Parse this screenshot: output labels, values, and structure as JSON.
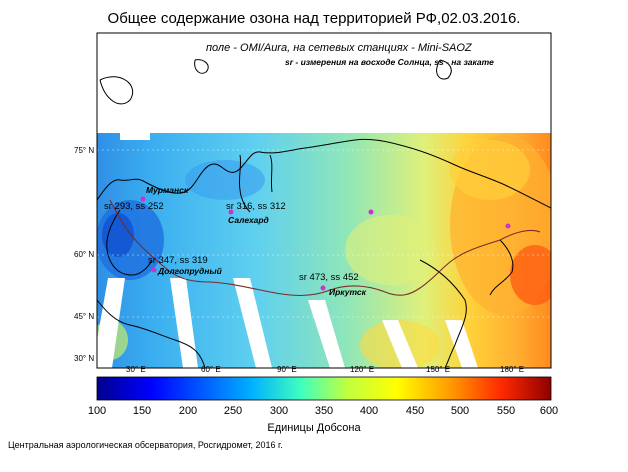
{
  "title": "Общее содержание озона над территорией РФ,02.03.2016.",
  "subtitle": "поле - OMI/Aura, на сетевых станциях - Mini-SAOZ",
  "note": "sr - измерения на восходе Солнца, ss - на закате",
  "lat_labels": [
    "30° N",
    "45° N",
    "60° N",
    "75° N"
  ],
  "lon_labels": [
    "30° E",
    "60° E",
    "90° E",
    "120° E",
    "150° E",
    "180° E"
  ],
  "colorbar": {
    "ticks": [
      "100",
      "150",
      "200",
      "250",
      "300",
      "350",
      "400",
      "450",
      "500",
      "550",
      "600"
    ],
    "label": "Единицы Добсона"
  },
  "stations": [
    {
      "name": "Мурманск",
      "measure": "sr 293, ss 252"
    },
    {
      "name": "Салехард",
      "measure": "sr 316, ss 312"
    },
    {
      "name": "Долгопрудный",
      "measure": "sr 347, ss 319"
    },
    {
      "name": "Иркутск",
      "measure": "sr 473, ss 452"
    }
  ],
  "footer": "Центральная аэрологическая обсерватория, Росгидромет, 2016 г.",
  "colors": {
    "coastline": "#000000",
    "border": "#7a2a2a",
    "station_marker": "#cc33cc"
  }
}
